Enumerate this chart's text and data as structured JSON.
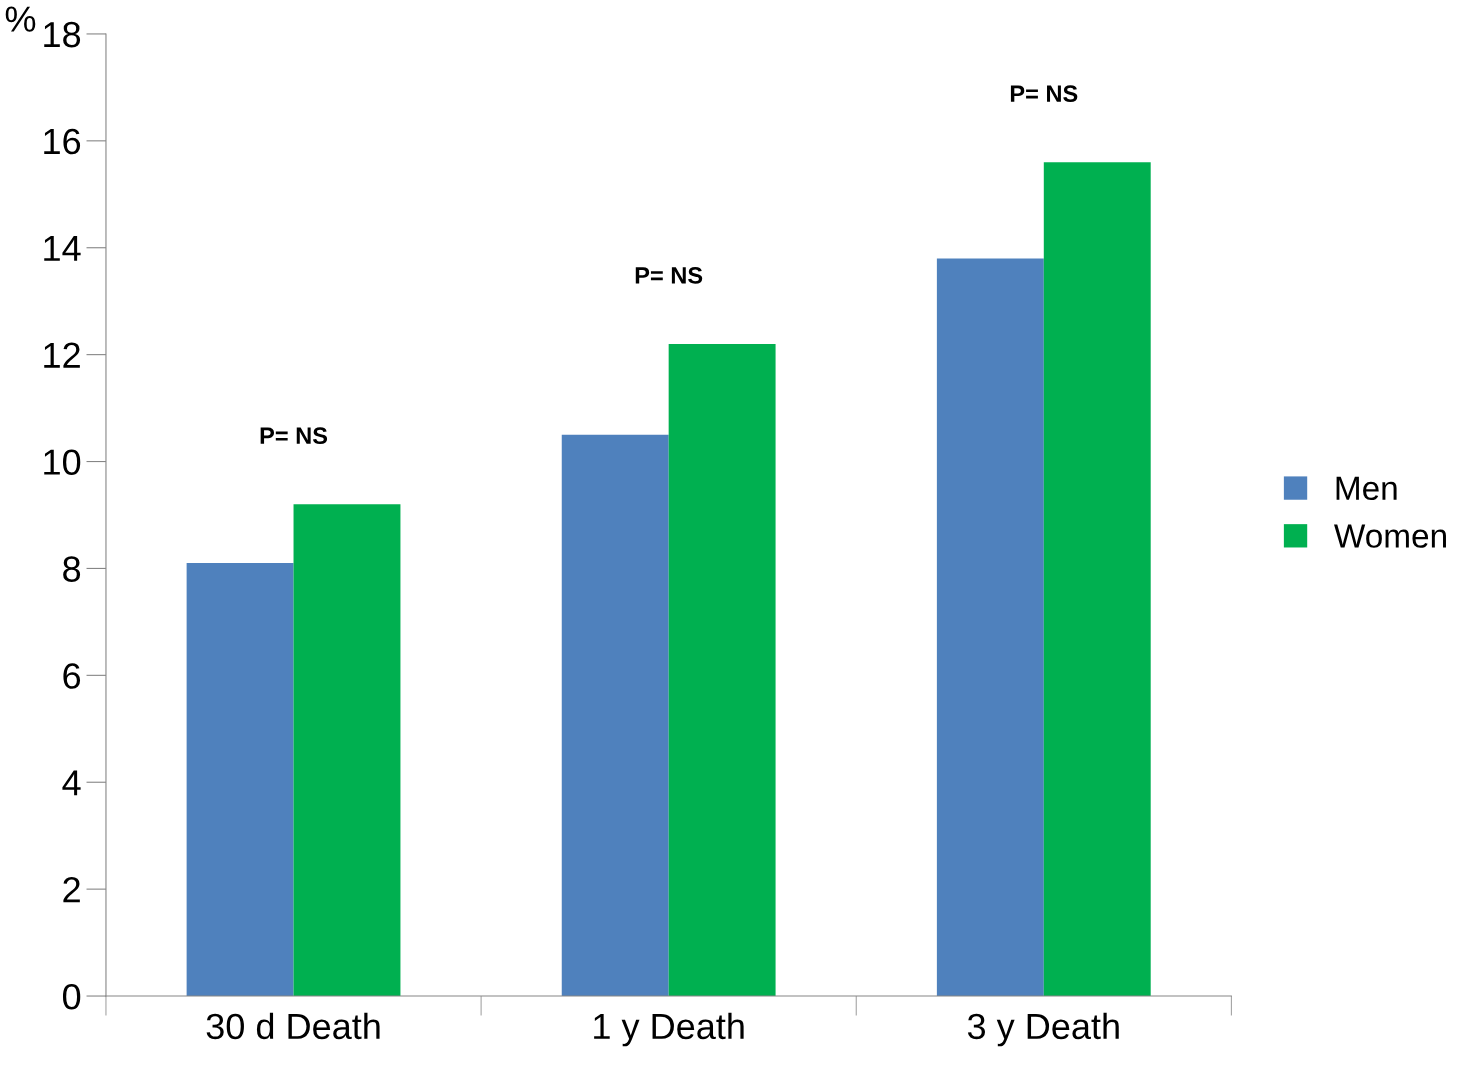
{
  "chart_data": {
    "type": "bar",
    "ylabel": "%",
    "categories": [
      "30 d Death",
      "1 y Death",
      "3 y Death"
    ],
    "series": [
      {
        "name": "Men",
        "color": "#4f81bd",
        "values": [
          8.1,
          10.5,
          13.8
        ]
      },
      {
        "name": "Women",
        "color": "#00b050",
        "values": [
          9.2,
          12.2,
          15.6
        ]
      }
    ],
    "ylim": [
      0,
      18
    ],
    "yticks": [
      0,
      2,
      4,
      6,
      8,
      10,
      12,
      14,
      16,
      18
    ],
    "grid": false,
    "legend": "right",
    "annotations": [
      "P= NS",
      "P= NS",
      "P= NS"
    ]
  }
}
